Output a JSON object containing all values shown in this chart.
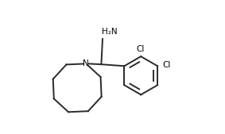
{
  "background_color": "#ffffff",
  "line_color": "#2a2a2a",
  "line_width": 1.4,
  "text_color": "#000000",
  "h2n_label": "H₂N",
  "cl_label": "Cl",
  "n_label": "N",
  "figsize": [
    2.83,
    1.69
  ],
  "dpi": 100,
  "xlim": [
    0.0,
    1.0
  ],
  "ylim": [
    0.0,
    1.0
  ]
}
